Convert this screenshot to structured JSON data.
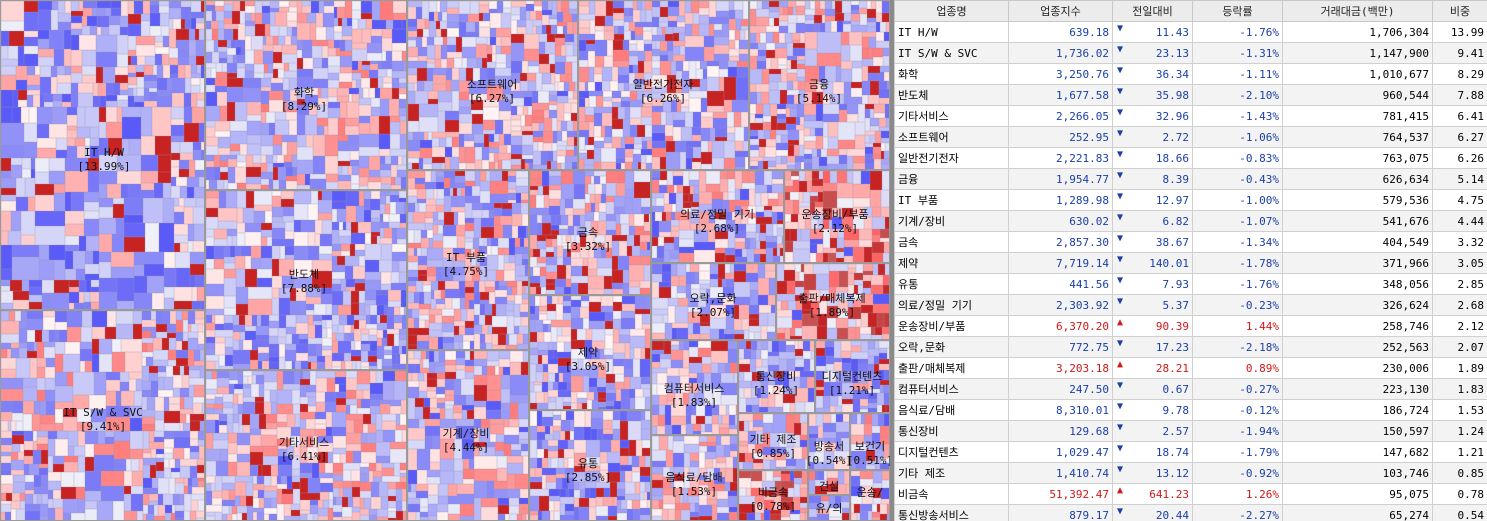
{
  "treemap": {
    "sectors": [
      {
        "id": "it-hw",
        "label": "IT H/W",
        "share": "[13.99%]",
        "change_pct": -1.76
      },
      {
        "id": "it-sw",
        "label": "IT S/W & SVC",
        "share": "[9.41%]",
        "change_pct": -1.31
      },
      {
        "id": "chem",
        "label": "화학",
        "share": "[8.29%]",
        "change_pct": -1.11
      },
      {
        "id": "semi",
        "label": "반도체",
        "share": "[7.88%]",
        "change_pct": -2.1
      },
      {
        "id": "etc-svc",
        "label": "기타서비스",
        "share": "[6.41%]",
        "change_pct": -1.43
      },
      {
        "id": "software",
        "label": "소프트웨어",
        "share": "[6.27%]",
        "change_pct": -1.06
      },
      {
        "id": "elec",
        "label": "일반전기전자",
        "share": "[6.26%]",
        "change_pct": -0.83
      },
      {
        "id": "finance",
        "label": "금융",
        "share": "[5.14%]",
        "change_pct": -0.43
      },
      {
        "id": "it-parts",
        "label": "IT 부품",
        "share": "[4.75%]",
        "change_pct": -1.0
      },
      {
        "id": "machine",
        "label": "기계/장비",
        "share": "[4.44%]",
        "change_pct": -1.07
      },
      {
        "id": "metal",
        "label": "금속",
        "share": "[3.32%]",
        "change_pct": -1.34
      },
      {
        "id": "pharma",
        "label": "제약",
        "share": "[3.05%]",
        "change_pct": -1.78
      },
      {
        "id": "retail",
        "label": "유통",
        "share": "[2.85%]",
        "change_pct": -1.76
      },
      {
        "id": "medical",
        "label": "의료/정밀 기기",
        "share": "[2.68%]",
        "change_pct": -0.23
      },
      {
        "id": "transport",
        "label": "운송장비/부품",
        "share": "[2.12%]",
        "change_pct": 1.44
      },
      {
        "id": "ent",
        "label": "오락,문화",
        "share": "[2.07%]",
        "change_pct": -2.18
      },
      {
        "id": "publish",
        "label": "출판/매체복제",
        "share": "[1.89%]",
        "change_pct": 0.89
      },
      {
        "id": "comp-svc",
        "label": "컴퓨터서비스",
        "share": "[1.83%]",
        "change_pct": -0.27
      },
      {
        "id": "food",
        "label": "음식료/담배",
        "share": "[1.53%]",
        "change_pct": -0.12
      },
      {
        "id": "telecom",
        "label": "통신장비",
        "share": "[1.24%]",
        "change_pct": -1.94
      },
      {
        "id": "digital",
        "label": "디지털컨텐츠",
        "share": "[1.21%]",
        "change_pct": -1.79
      },
      {
        "id": "etc-mfg",
        "label": "기타 제조",
        "share": "[0.85%]",
        "change_pct": -0.92
      },
      {
        "id": "nonmetal",
        "label": "비금속",
        "share": "[0.78%]",
        "change_pct": 1.26
      },
      {
        "id": "broadcast",
        "label": "통신방송서비스",
        "short_label": "방송서",
        "share": "[0.54%]",
        "change_pct": -2.27
      },
      {
        "id": "insurance",
        "label": "보건기",
        "share": "[0.51%]",
        "change_pct": 0
      },
      {
        "id": "construction",
        "label": "건설",
        "share": "",
        "change_pct": 0
      },
      {
        "id": "dist",
        "label": "유/의",
        "share": "",
        "change_pct": 0
      },
      {
        "id": "ship",
        "label": "운송/",
        "share": "",
        "change_pct": 0
      }
    ]
  },
  "table": {
    "columns": [
      "업종명",
      "업종지수",
      "전일대비",
      "등락률",
      "거래대금(백만)",
      "비중"
    ],
    "rows": [
      {
        "name": "IT H/W",
        "index": "639.18",
        "dir": "down",
        "change": "11.43",
        "rate": "-1.76%",
        "value": "1,706,304",
        "weight": "13.99"
      },
      {
        "name": "IT S/W & SVC",
        "index": "1,736.02",
        "dir": "down",
        "change": "23.13",
        "rate": "-1.31%",
        "value": "1,147,900",
        "weight": "9.41"
      },
      {
        "name": "화학",
        "index": "3,250.76",
        "dir": "down",
        "change": "36.34",
        "rate": "-1.11%",
        "value": "1,010,677",
        "weight": "8.29"
      },
      {
        "name": "반도체",
        "index": "1,677.58",
        "dir": "down",
        "change": "35.98",
        "rate": "-2.10%",
        "value": "960,544",
        "weight": "7.88"
      },
      {
        "name": "기타서비스",
        "index": "2,266.05",
        "dir": "down",
        "change": "32.96",
        "rate": "-1.43%",
        "value": "781,415",
        "weight": "6.41"
      },
      {
        "name": "소프트웨어",
        "index": "252.95",
        "dir": "down",
        "change": "2.72",
        "rate": "-1.06%",
        "value": "764,537",
        "weight": "6.27"
      },
      {
        "name": "일반전기전자",
        "index": "2,221.83",
        "dir": "down",
        "change": "18.66",
        "rate": "-0.83%",
        "value": "763,075",
        "weight": "6.26"
      },
      {
        "name": "금융",
        "index": "1,954.77",
        "dir": "down",
        "change": "8.39",
        "rate": "-0.43%",
        "value": "626,634",
        "weight": "5.14"
      },
      {
        "name": "IT 부품",
        "index": "1,289.98",
        "dir": "down",
        "change": "12.97",
        "rate": "-1.00%",
        "value": "579,536",
        "weight": "4.75"
      },
      {
        "name": "기계/장비",
        "index": "630.02",
        "dir": "down",
        "change": "6.82",
        "rate": "-1.07%",
        "value": "541,676",
        "weight": "4.44"
      },
      {
        "name": "금속",
        "index": "2,857.30",
        "dir": "down",
        "change": "38.67",
        "rate": "-1.34%",
        "value": "404,549",
        "weight": "3.32"
      },
      {
        "name": "제약",
        "index": "7,719.14",
        "dir": "down",
        "change": "140.01",
        "rate": "-1.78%",
        "value": "371,966",
        "weight": "3.05"
      },
      {
        "name": "유통",
        "index": "441.56",
        "dir": "down",
        "change": "7.93",
        "rate": "-1.76%",
        "value": "348,056",
        "weight": "2.85"
      },
      {
        "name": "의료/정밀 기기",
        "index": "2,303.92",
        "dir": "down",
        "change": "5.37",
        "rate": "-0.23%",
        "value": "326,624",
        "weight": "2.68"
      },
      {
        "name": "운송장비/부품",
        "index": "6,370.20",
        "dir": "up",
        "change": "90.39",
        "rate": "1.44%",
        "value": "258,746",
        "weight": "2.12"
      },
      {
        "name": "오락,문화",
        "index": "772.75",
        "dir": "down",
        "change": "17.23",
        "rate": "-2.18%",
        "value": "252,563",
        "weight": "2.07"
      },
      {
        "name": "출판/매체복제",
        "index": "3,203.18",
        "dir": "up",
        "change": "28.21",
        "rate": "0.89%",
        "value": "230,006",
        "weight": "1.89"
      },
      {
        "name": "컴퓨터서비스",
        "index": "247.50",
        "dir": "down",
        "change": "0.67",
        "rate": "-0.27%",
        "value": "223,130",
        "weight": "1.83"
      },
      {
        "name": "음식료/담배",
        "index": "8,310.01",
        "dir": "down",
        "change": "9.78",
        "rate": "-0.12%",
        "value": "186,724",
        "weight": "1.53"
      },
      {
        "name": "통신장비",
        "index": "129.68",
        "dir": "down",
        "change": "2.57",
        "rate": "-1.94%",
        "value": "150,597",
        "weight": "1.24"
      },
      {
        "name": "디지털컨텐츠",
        "index": "1,029.47",
        "dir": "down",
        "change": "18.74",
        "rate": "-1.79%",
        "value": "147,682",
        "weight": "1.21"
      },
      {
        "name": "기타 제조",
        "index": "1,410.74",
        "dir": "down",
        "change": "13.12",
        "rate": "-0.92%",
        "value": "103,746",
        "weight": "0.85"
      },
      {
        "name": "비금속",
        "index": "51,392.47",
        "dir": "up",
        "change": "641.23",
        "rate": "1.26%",
        "value": "95,075",
        "weight": "0.78"
      },
      {
        "name": "통신방송서비스",
        "index": "879.17",
        "dir": "down",
        "change": "20.44",
        "rate": "-2.27%",
        "value": "65,274",
        "weight": "0.54"
      }
    ],
    "arrow_up": "▲",
    "arrow_down": "▼"
  },
  "colors": {
    "up": "#d01818",
    "down": "#1a3ea8",
    "strong_up": "#c21212",
    "strong_down": "#2c2cb8"
  }
}
